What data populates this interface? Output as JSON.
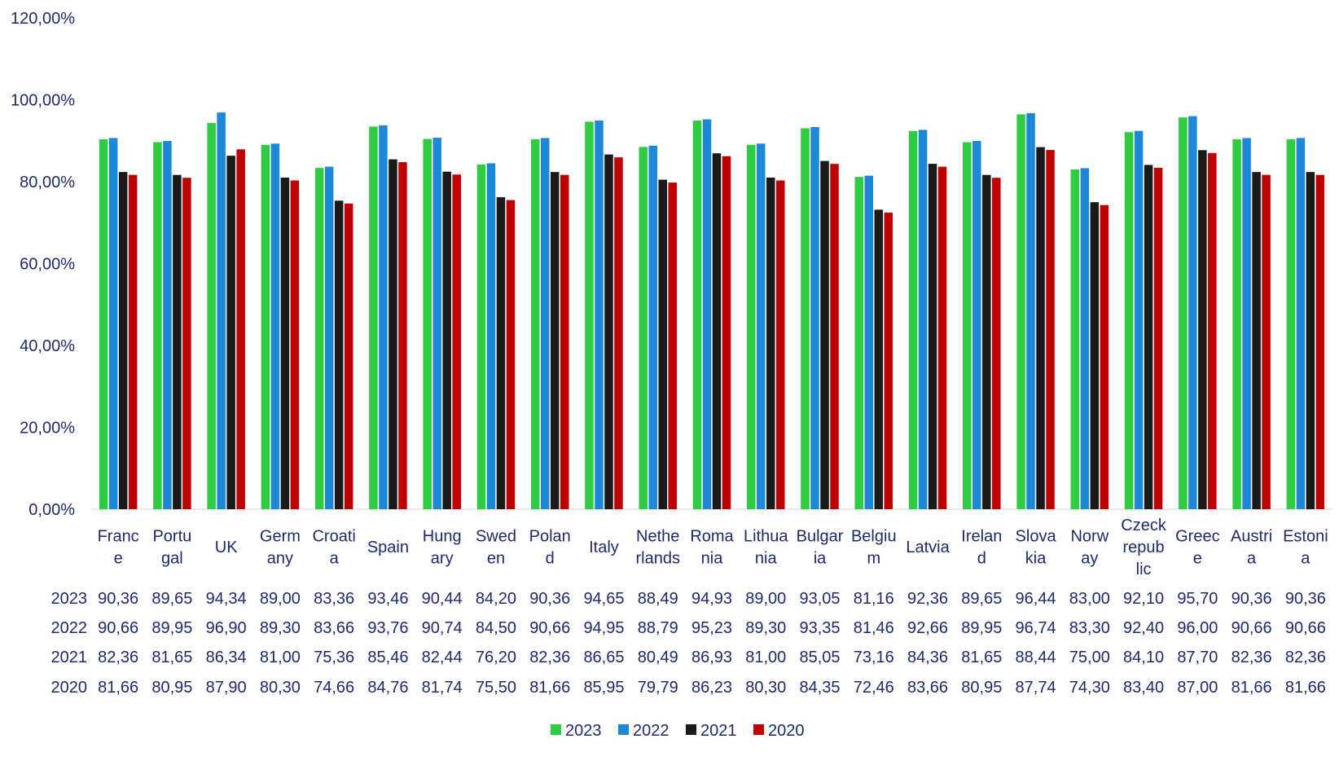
{
  "chart_data": {
    "type": "bar",
    "title": "",
    "xlabel": "",
    "ylabel": "",
    "ylim": [
      0,
      120
    ],
    "y_ticks": [
      "0,00%",
      "20,00%",
      "40,00%",
      "60,00%",
      "80,00%",
      "100,00%",
      "120,00%"
    ],
    "y_tick_values": [
      0,
      20,
      40,
      60,
      80,
      100,
      120
    ],
    "grid": false,
    "legend_position": "bottom",
    "categories": [
      "France",
      "Portugal",
      "UK",
      "Germany",
      "Croatia",
      "Spain",
      "Hungary",
      "Sweden",
      "Poland",
      "Italy",
      "Netherlands",
      "Romania",
      "Lithuania",
      "Bulgaria",
      "Belgium",
      "Latvia",
      "Ireland",
      "Slovakia",
      "Norway",
      "Czeck republic",
      "Greece",
      "Austria",
      "Estonia"
    ],
    "category_label_lines": [
      [
        "Franc",
        "e"
      ],
      [
        "Portu",
        "gal"
      ],
      [
        "UK"
      ],
      [
        "Germ",
        "any"
      ],
      [
        "Croati",
        "a"
      ],
      [
        "Spain"
      ],
      [
        "Hung",
        "ary"
      ],
      [
        "Swed",
        "en"
      ],
      [
        "Polan",
        "d"
      ],
      [
        "Italy"
      ],
      [
        "Nethe",
        "rlands"
      ],
      [
        "Roma",
        "nia"
      ],
      [
        "Lithua",
        "nia"
      ],
      [
        "Bulgar",
        "ia"
      ],
      [
        "Belgiu",
        "m"
      ],
      [
        "Latvia"
      ],
      [
        "Irelan",
        "d"
      ],
      [
        "Slova",
        "kia"
      ],
      [
        "Norw",
        "ay"
      ],
      [
        "Czeck",
        "repub",
        "lic"
      ],
      [
        "Greec",
        "e"
      ],
      [
        "Austri",
        "a"
      ],
      [
        "Estoni",
        "a"
      ]
    ],
    "series": [
      {
        "name": "2023",
        "color": "#2ecc40",
        "values": [
          90.36,
          89.65,
          94.34,
          89.0,
          83.36,
          93.46,
          90.44,
          84.2,
          90.36,
          94.65,
          88.49,
          94.93,
          89.0,
          93.05,
          81.16,
          92.36,
          89.65,
          96.44,
          83.0,
          92.1,
          95.7,
          90.36,
          90.36
        ],
        "labels": [
          "90,36",
          "89,65",
          "94,34",
          "89,00",
          "83,36",
          "93,46",
          "90,44",
          "84,20",
          "90,36",
          "94,65",
          "88,49",
          "94,93",
          "89,00",
          "93,05",
          "81,16",
          "92,36",
          "89,65",
          "96,44",
          "83,00",
          "92,10",
          "95,70",
          "90,36",
          "90,36"
        ]
      },
      {
        "name": "2022",
        "color": "#1e88d8",
        "values": [
          90.66,
          89.95,
          96.9,
          89.3,
          83.66,
          93.76,
          90.74,
          84.5,
          90.66,
          94.95,
          88.79,
          95.23,
          89.3,
          93.35,
          81.46,
          92.66,
          89.95,
          96.74,
          83.3,
          92.4,
          96.0,
          90.66,
          90.66
        ],
        "labels": [
          "90,66",
          "89,95",
          "96,90",
          "89,30",
          "83,66",
          "93,76",
          "90,74",
          "84,50",
          "90,66",
          "94,95",
          "88,79",
          "95,23",
          "89,30",
          "93,35",
          "81,46",
          "92,66",
          "89,95",
          "96,74",
          "83,30",
          "92,40",
          "96,00",
          "90,66",
          "90,66"
        ]
      },
      {
        "name": "2021",
        "color": "#1a1a1a",
        "values": [
          82.36,
          81.65,
          86.34,
          81.0,
          75.36,
          85.46,
          82.44,
          76.2,
          82.36,
          86.65,
          80.49,
          86.93,
          81.0,
          85.05,
          73.16,
          84.36,
          81.65,
          88.44,
          75.0,
          84.1,
          87.7,
          82.36,
          82.36
        ],
        "labels": [
          "82,36",
          "81,65",
          "86,34",
          "81,00",
          "75,36",
          "85,46",
          "82,44",
          "76,20",
          "82,36",
          "86,65",
          "80,49",
          "86,93",
          "81,00",
          "85,05",
          "73,16",
          "84,36",
          "81,65",
          "88,44",
          "75,00",
          "84,10",
          "87,70",
          "82,36",
          "82,36"
        ]
      },
      {
        "name": "2020",
        "color": "#c00000",
        "values": [
          81.66,
          80.95,
          87.9,
          80.3,
          74.66,
          84.76,
          81.74,
          75.5,
          81.66,
          85.95,
          79.79,
          86.23,
          80.3,
          84.35,
          72.46,
          83.66,
          80.95,
          87.74,
          74.3,
          83.4,
          87.0,
          81.66,
          81.66
        ],
        "labels": [
          "81,66",
          "80,95",
          "87,90",
          "80,30",
          "74,66",
          "84,76",
          "81,74",
          "75,50",
          "81,66",
          "85,95",
          "79,79",
          "86,23",
          "80,30",
          "84,35",
          "72,46",
          "83,66",
          "80,95",
          "87,74",
          "74,30",
          "83,40",
          "87,00",
          "81,66",
          "81,66"
        ]
      }
    ]
  }
}
